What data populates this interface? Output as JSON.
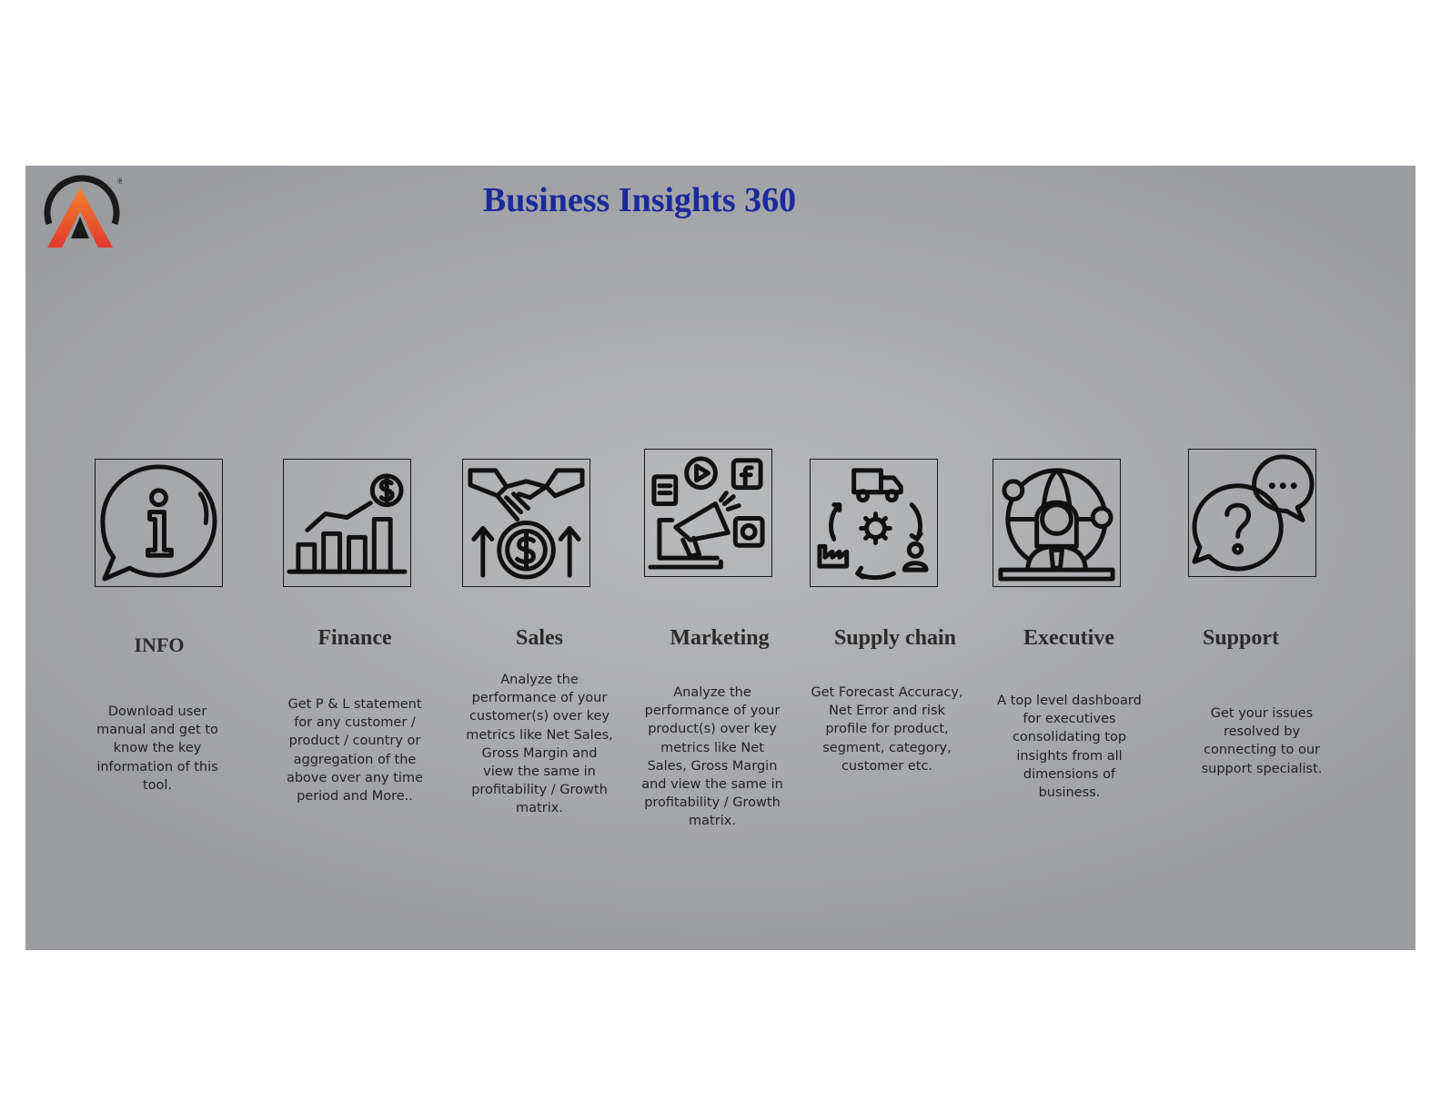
{
  "header": {
    "title": "Business Insights 360"
  },
  "logo": {
    "letter": "A",
    "registered": "®",
    "colors": {
      "arc": "#1a1a1a",
      "gradient_top": "#f26a2a",
      "gradient_bottom": "#e03a2c"
    }
  },
  "colors": {
    "title": "#1b2a9b",
    "slide_bg": "#aeafb2",
    "text": "#222222"
  },
  "sections": [
    {
      "id": "info",
      "label": "INFO",
      "icon": "info-speech-bubble-icon",
      "description": "Download user manual and get to know the key information of this tool."
    },
    {
      "id": "finance",
      "label": "Finance",
      "icon": "bar-chart-dollar-icon",
      "description": "Get  P & L statement for any customer / product / country or aggregation of the above over any time period and More.."
    },
    {
      "id": "sales",
      "label": "Sales",
      "icon": "handshake-dollar-icon",
      "description": "Analyze the performance of your customer(s) over key metrics like Net Sales, Gross Margin and view the same in profitability / Growth matrix."
    },
    {
      "id": "marketing",
      "label": "Marketing",
      "icon": "megaphone-social-icon",
      "description": "Analyze the performance of your product(s) over key metrics like Net Sales, Gross Margin and view the same in profitability / Growth matrix."
    },
    {
      "id": "supply-chain",
      "label": "Supply chain",
      "icon": "supply-chain-cycle-icon",
      "description": "Get Forecast Accuracy, Net Error and risk profile for product, segment, category, customer etc."
    },
    {
      "id": "executive",
      "label": "Executive",
      "icon": "executive-globe-icon",
      "description": "A top level dashboard for executives consolidating top insights from all dimensions of business."
    },
    {
      "id": "support",
      "label": "Support",
      "icon": "support-chat-question-icon",
      "description": "Get your issues resolved by connecting to our support specialist."
    }
  ]
}
